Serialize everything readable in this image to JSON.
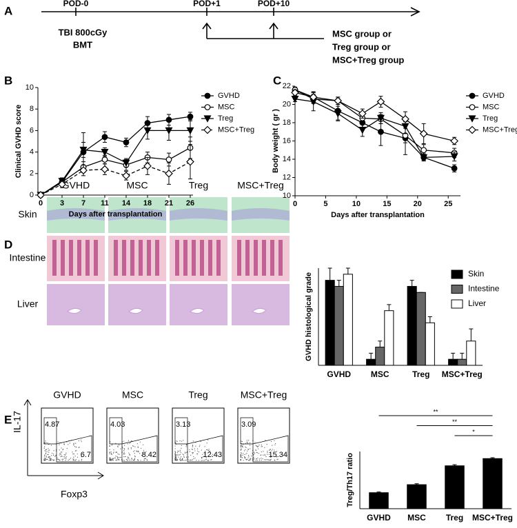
{
  "panel_labels": [
    "A",
    "B",
    "C",
    "D",
    "E"
  ],
  "timeline": {
    "pod_labels": [
      "POD-0",
      "POD+1",
      "POD+10"
    ],
    "day0_text": [
      "TBI 800cGy",
      "BMT"
    ],
    "group_text": [
      "MSC group  or",
      "Treg group  or",
      "MSC+Treg group"
    ]
  },
  "histology": {
    "columns": [
      "GVHD",
      "MSC",
      "Treg",
      "MSC+Treg"
    ],
    "rows": [
      "Skin",
      "Intestine",
      "Liver"
    ]
  },
  "flow": {
    "columns": [
      "GVHD",
      "MSC",
      "Treg",
      "MSC+Treg"
    ],
    "y_label": "IL-17",
    "x_label": "Foxp3",
    "gates": [
      [
        4.87,
        6.7
      ],
      [
        4.03,
        8.42
      ],
      [
        3.13,
        12.43
      ],
      [
        3.09,
        15.34
      ]
    ]
  },
  "chart_data": [
    {
      "type": "line",
      "x_label": "Days after transplantation",
      "y_label": "Clinical GVHD score",
      "categories": [
        "0",
        "3",
        "7",
        "11",
        "14",
        "18",
        "21",
        "26"
      ],
      "ylim": [
        0,
        10
      ],
      "yticks": [
        0,
        2,
        4,
        6,
        8,
        10
      ],
      "series": [
        {
          "name": "GVHD",
          "color": "#000000",
          "marker": "circle",
          "filled": true,
          "dashed": false,
          "values": [
            0,
            1.2,
            4.0,
            5.4,
            4.9,
            6.7,
            7.0,
            7.3
          ],
          "errors": [
            0,
            0.3,
            1.8,
            0.5,
            0.4,
            0.6,
            0.5,
            0.4
          ]
        },
        {
          "name": "MSC",
          "color": "#000000",
          "marker": "circle",
          "filled": false,
          "dashed": false,
          "values": [
            0,
            1.2,
            2.6,
            3.3,
            2.8,
            3.5,
            3.3,
            4.4
          ],
          "errors": [
            0,
            0.3,
            0.5,
            0.4,
            0.5,
            0.5,
            0.6,
            1.0
          ]
        },
        {
          "name": "Treg",
          "color": "#000000",
          "marker": "triangle",
          "filled": true,
          "dashed": false,
          "values": [
            0,
            1.3,
            4.2,
            4.0,
            3.0,
            6.0,
            6.0,
            6.0
          ],
          "errors": [
            0,
            0.3,
            0.7,
            0.4,
            0.4,
            0.8,
            0.9,
            1.0
          ]
        },
        {
          "name": "MSC+Treg",
          "color": "#000000",
          "marker": "diamond",
          "filled": false,
          "dashed": true,
          "values": [
            0,
            1.0,
            2.3,
            2.4,
            1.8,
            2.7,
            2.0,
            3.1
          ],
          "errors": [
            0,
            0.3,
            0.5,
            0.5,
            0.4,
            0.8,
            1.0,
            1.6
          ]
        }
      ]
    },
    {
      "type": "line",
      "x_label": "Days after transplantation",
      "y_label": "Body weight ( gr )",
      "x": [
        0,
        3,
        7,
        11,
        14,
        18,
        21,
        26
      ],
      "xlim": [
        0,
        27
      ],
      "xticks": [
        0,
        5,
        10,
        15,
        20,
        25
      ],
      "ylim": [
        10,
        22
      ],
      "yticks": [
        10,
        12,
        14,
        16,
        18,
        20,
        22
      ],
      "series": [
        {
          "name": "GVHD",
          "color": "#000000",
          "marker": "circle",
          "filled": true,
          "dashed": false,
          "values": [
            21.6,
            20.8,
            19.3,
            18.0,
            17.0,
            16.3,
            14.2,
            13.0
          ],
          "errors": [
            0.3,
            0.6,
            1.0,
            0.8,
            1.5,
            1.8,
            0.3,
            0.4
          ]
        },
        {
          "name": "MSC",
          "color": "#000000",
          "marker": "circle",
          "filled": false,
          "dashed": false,
          "values": [
            21.6,
            20.6,
            20.4,
            18.5,
            18.4,
            16.6,
            15.0,
            14.7
          ],
          "errors": [
            0.3,
            0.5,
            0.4,
            0.6,
            0.5,
            0.8,
            0.6,
            0.5
          ]
        },
        {
          "name": "Treg",
          "color": "#000000",
          "marker": "triangle",
          "filled": true,
          "dashed": false,
          "values": [
            20.6,
            20.3,
            19.0,
            17.2,
            18.5,
            17.6,
            14.2,
            14.3
          ],
          "errors": [
            0.3,
            1.0,
            0.8,
            0.7,
            0.6,
            0.8,
            0.4,
            0.5
          ]
        },
        {
          "name": "MSC+Treg",
          "color": "#000000",
          "marker": "diamond",
          "filled": false,
          "dashed": false,
          "values": [
            21.3,
            20.8,
            20.4,
            19.0,
            20.3,
            18.4,
            16.8,
            16.0
          ],
          "errors": [
            0.3,
            0.5,
            0.4,
            0.5,
            0.6,
            0.8,
            1.1,
            0.4
          ]
        }
      ]
    },
    {
      "type": "bar",
      "y_label": "GVHD histological grade",
      "categories": [
        "GVHD",
        "MSC",
        "Treg",
        "MSC+Treg"
      ],
      "ylim": [
        0,
        4
      ],
      "series": [
        {
          "name": "Skin",
          "color": "#000000",
          "values": [
            3.5,
            0.25,
            3.25,
            0.25
          ],
          "errors": [
            0.5,
            0.25,
            0.25,
            0.25
          ]
        },
        {
          "name": "Intestine",
          "color": "#666666",
          "values": [
            3.25,
            0.75,
            3.0,
            0.25
          ],
          "errors": [
            0.25,
            0.25,
            0,
            0.25
          ]
        },
        {
          "name": "Liver",
          "color": "#ffffff",
          "values": [
            3.75,
            2.25,
            1.75,
            1.0
          ],
          "errors": [
            0.25,
            0.25,
            0.25,
            0.5
          ]
        }
      ]
    },
    {
      "type": "bar",
      "y_label": "Treg/Th17 ratio",
      "categories": [
        "GVHD",
        "MSC",
        "Treg",
        "MSC+Treg"
      ],
      "ylim": [
        0,
        5
      ],
      "series": [
        {
          "color": "#000000",
          "values": [
            1.4,
            2.1,
            3.75,
            4.38
          ],
          "errors": [
            0.06,
            0.08,
            0.1,
            0.08
          ]
        }
      ],
      "significance": [
        "**",
        "**",
        "*"
      ]
    }
  ]
}
